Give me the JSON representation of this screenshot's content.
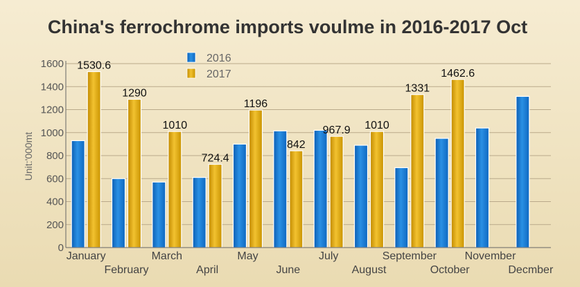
{
  "chart_data": {
    "type": "bar",
    "title": "China's ferrochrome imports voulme in 2016-2017 Oct",
    "xlabel": "",
    "ylabel": "Unit:'000mt",
    "ylim": [
      0,
      1600
    ],
    "yticks": [
      0,
      200,
      400,
      600,
      800,
      1000,
      1200,
      1400,
      1600
    ],
    "grid": true,
    "legend_position": "top-left",
    "categories": [
      "January",
      "February",
      "March",
      "April",
      "May",
      "June",
      "July",
      "August",
      "September",
      "October",
      "November",
      "Decmber"
    ],
    "series": [
      {
        "name": "2016",
        "color": "#1a78d0",
        "values": [
          930,
          600,
          570,
          610,
          900,
          1015,
          1020,
          890,
          695,
          950,
          1040,
          1315
        ],
        "labels": [
          "",
          "",
          "",
          "",
          "",
          "",
          "",
          "",
          "",
          "",
          "",
          ""
        ]
      },
      {
        "name": "2017",
        "color": "#e0aa10",
        "values": [
          1530.6,
          1290,
          1010,
          724.4,
          1196,
          842,
          967.9,
          1010,
          1331,
          1462.6,
          null,
          null
        ],
        "labels": [
          "1530.6",
          "1290",
          "1010",
          "724.4",
          "1196",
          "842",
          "967.9",
          "1010",
          "1331",
          "1462.6",
          "",
          ""
        ]
      }
    ]
  }
}
